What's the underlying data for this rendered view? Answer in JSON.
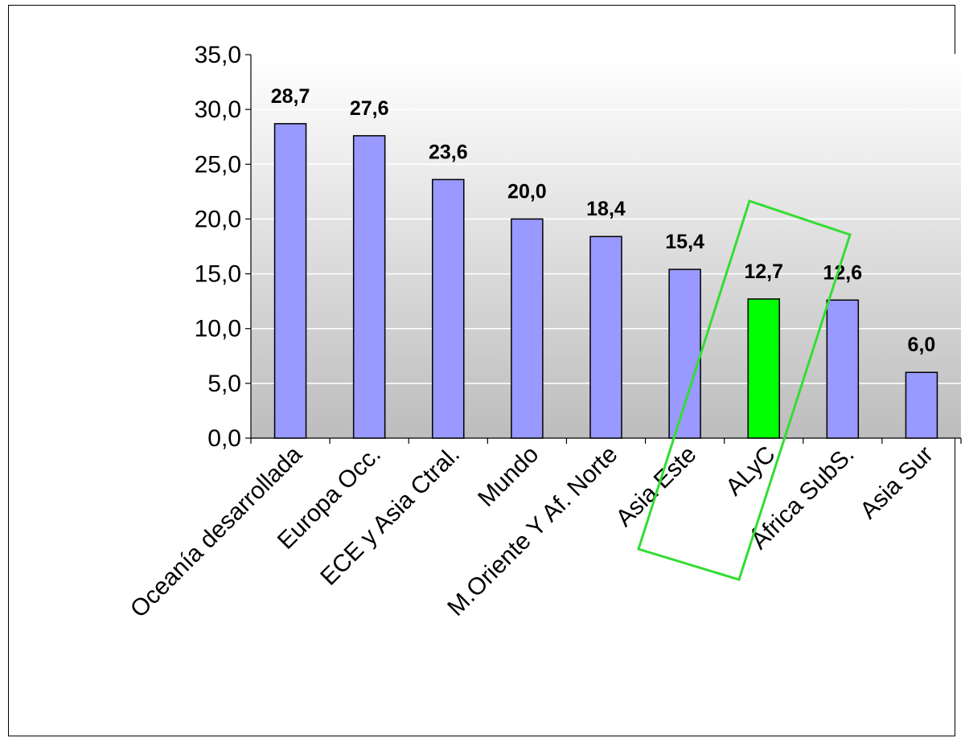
{
  "chart_data": {
    "type": "bar",
    "categories": [
      "Oceanía desarrollada",
      "Europa Occ.",
      "ECE y Asia Ctral.",
      "Mundo",
      "M.Oriente Y Af. Norte",
      "Asia Este",
      "ALyC",
      "África SubS.",
      "Asia Sur"
    ],
    "values": [
      28.7,
      27.6,
      23.6,
      20.0,
      18.4,
      15.4,
      12.7,
      12.6,
      6.0
    ],
    "data_labels": [
      "28,7",
      "27,6",
      "23,6",
      "20,0",
      "18,4",
      "15,4",
      "12,7",
      "12,6",
      "6,0"
    ],
    "title": "",
    "xlabel": "",
    "ylabel": "",
    "ylim": [
      0,
      35
    ],
    "yticks": [
      "0,0",
      "5,0",
      "10,0",
      "15,0",
      "20,0",
      "25,0",
      "30,0",
      "35,0"
    ],
    "grid": true,
    "legend": "none",
    "highlight_category": "ALyC",
    "colors": {
      "bar": "#9999FF",
      "highlight_bar": "#00FF00",
      "highlight_box": "#33DD33",
      "plot_bg_top": "#FFFFFF",
      "plot_bg_bottom": "#BDBDBD",
      "grid": "#FFFFFF"
    }
  }
}
